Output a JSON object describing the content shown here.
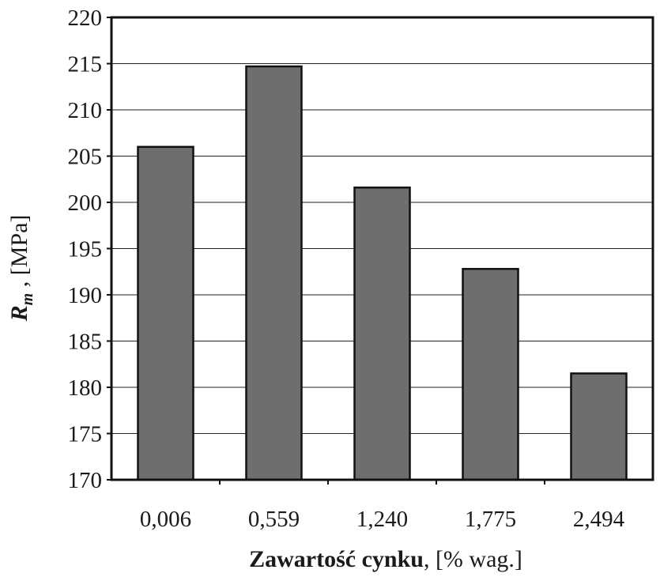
{
  "chart_data": {
    "type": "bar",
    "categories": [
      "0,006",
      "0,559",
      "1,240",
      "1,775",
      "2,494"
    ],
    "values": [
      206,
      214.7,
      201.6,
      192.8,
      181.5
    ],
    "xlabel": {
      "main": "Zawartość cynku",
      "suffix": ", [% wag.]"
    },
    "ylabel": {
      "symbol": "R",
      "subscript": "m",
      "suffix": " , [MPa]"
    },
    "ylim": [
      170,
      220
    ],
    "yticks": [
      170,
      175,
      180,
      185,
      190,
      195,
      200,
      205,
      210,
      215,
      220
    ],
    "grid": true,
    "legend": "none",
    "colors": {
      "bar_fill": "#6e6e6e",
      "bar_stroke": "#111111",
      "grid": "#222222",
      "frame": "#111111"
    }
  }
}
